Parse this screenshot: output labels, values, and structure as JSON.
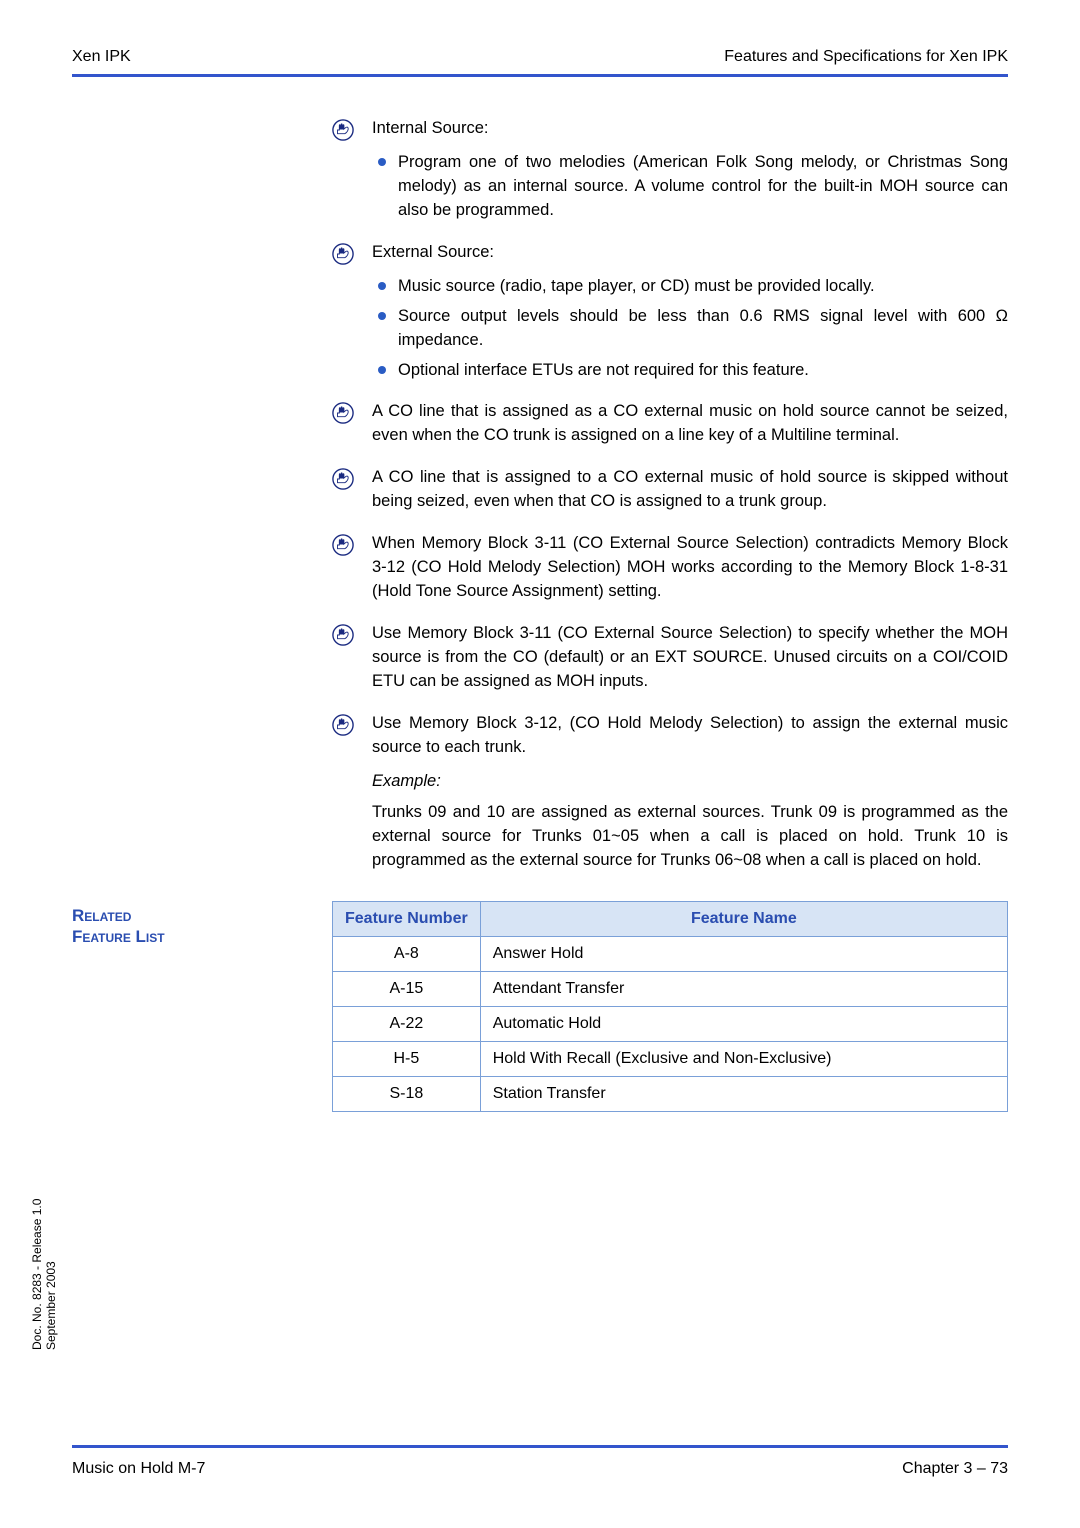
{
  "header": {
    "left": "Xen IPK",
    "right": "Features and Specifications for Xen IPK"
  },
  "colors": {
    "rule": "#3355cc",
    "hand_stroke": "#1a2a80",
    "hand_fill": "#ffffff",
    "dot": "#2a5cc4",
    "table_border": "#7aa0d8",
    "table_header_bg": "#d7e4f5",
    "table_header_fg": "#2a4db0",
    "related_fg": "#2a4db0"
  },
  "bullets": [
    {
      "text": "Internal Source:",
      "subs": [
        "Program one of two melodies (American Folk Song melody, or Christmas Song melody) as an internal source. A volume control for the built-in MOH source can also be programmed."
      ]
    },
    {
      "text": "External Source:",
      "subs": [
        "Music source (radio, tape player, or CD) must be provided locally.",
        "Source output levels should be less than 0.6 RMS signal level with 600 Ω impedance.",
        "Optional interface ETUs are not required for this feature."
      ]
    },
    {
      "text": "A CO line that is assigned as a CO external music on hold source cannot be seized, even when the CO trunk is assigned on a line key of a Multiline terminal."
    },
    {
      "text": "A CO line that is assigned to a CO external music of hold source is skipped without being seized, even when that CO is assigned to a trunk group."
    },
    {
      "text": "When Memory Block 3-11 (CO External Source Selection) contradicts Memory Block 3-12 (CO Hold Melody Selection) MOH works according to the Memory Block 1-8-31 (Hold Tone Source Assignment) setting."
    },
    {
      "text": "Use Memory Block 3-11 (CO External Source Selection) to specify whether the MOH source is from the CO (default) or an EXT SOURCE. Unused circuits on a COI/COID ETU can be assigned as MOH inputs."
    },
    {
      "text": "Use Memory Block 3-12, (CO Hold Melody Selection) to assign the external music source to each trunk.",
      "example_label": "Example:",
      "example_text": "Trunks 09 and 10 are assigned as external sources. Trunk 09 is programmed as the external source for Trunks 01~05 when a call is placed on hold. Trunk 10 is programmed as the external source for Trunks 06~08 when a call is placed on hold."
    }
  ],
  "related": {
    "label_line1": "Related",
    "label_line2": "Feature List",
    "headers": [
      "Feature Number",
      "Feature Name"
    ],
    "rows": [
      [
        "A-8",
        "Answer Hold"
      ],
      [
        "A-15",
        "Attendant Transfer"
      ],
      [
        "A-22",
        "Automatic Hold"
      ],
      [
        "H-5",
        "Hold With Recall (Exclusive and Non-Exclusive)"
      ],
      [
        "S-18",
        "Station Transfer"
      ]
    ]
  },
  "side": {
    "line1": "Doc. No. 8283 - Release 1.0",
    "line2": "September 2003"
  },
  "footer": {
    "left": "Music on Hold M-7",
    "right": "Chapter 3 – 73"
  }
}
